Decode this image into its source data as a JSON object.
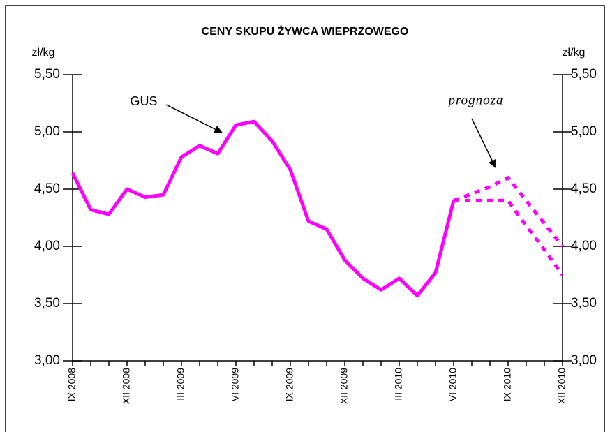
{
  "chart_data": {
    "type": "line",
    "title": "CENY SKUPU ŻYWCA WIEPRZOWEGO",
    "y_label": "zł/kg",
    "y2_label": "zł/kg",
    "annotations": [
      "GUS",
      "prognoza"
    ],
    "categories": [
      "IX 2008",
      null,
      null,
      "XII 2008",
      null,
      null,
      "III 2009",
      null,
      null,
      "VI 2009",
      null,
      null,
      "IX 2009",
      null,
      null,
      "XII 2009",
      null,
      null,
      "III 2010",
      null,
      null,
      "VI 2010",
      null,
      null,
      "IX 2010",
      null,
      null,
      "XII 2010"
    ],
    "series": [
      {
        "color": "#ff00ff",
        "style": "solid",
        "values": [
          4.64,
          4.32,
          4.28,
          4.5,
          4.43,
          4.45,
          4.78,
          4.88,
          4.81,
          5.06,
          5.09,
          4.92,
          4.67,
          4.22,
          4.15,
          3.88,
          3.72,
          3.62,
          3.72,
          3.57,
          3.77,
          4.4,
          null,
          null,
          null,
          null,
          null,
          null
        ]
      },
      {
        "color": "#ff00ff",
        "style": "dashed",
        "values": [
          null,
          null,
          null,
          null,
          null,
          null,
          null,
          null,
          null,
          null,
          null,
          null,
          null,
          null,
          null,
          null,
          null,
          null,
          null,
          null,
          null,
          4.4,
          4.46,
          4.52,
          4.6,
          4.4,
          4.2,
          4.0
        ]
      },
      {
        "color": "#ff00ff",
        "style": "dashed",
        "values": [
          null,
          null,
          null,
          null,
          null,
          null,
          null,
          null,
          null,
          null,
          null,
          null,
          null,
          null,
          null,
          null,
          null,
          null,
          null,
          null,
          null,
          4.4,
          4.4,
          4.4,
          4.4,
          4.18,
          3.97,
          3.75
        ]
      }
    ],
    "ylim": [
      3.0,
      5.5
    ],
    "yticks": [
      {
        "value": 3.0,
        "label": "3,00"
      },
      {
        "value": 3.5,
        "label": "3,50"
      },
      {
        "value": 4.0,
        "label": "4,00"
      },
      {
        "value": 4.5,
        "label": "4,50"
      },
      {
        "value": 5.0,
        "label": "5,00"
      },
      {
        "value": 5.5,
        "label": "5,50"
      }
    ],
    "y2lim": [
      3.0,
      5.5
    ],
    "y2ticks": [
      {
        "value": 3.0,
        "label": "3,00"
      },
      {
        "value": 3.5,
        "label": "3,50"
      },
      {
        "value": 4.0,
        "label": "4,00"
      },
      {
        "value": 4.5,
        "label": "4,50"
      },
      {
        "value": 5.0,
        "label": "5,00"
      },
      {
        "value": 5.5,
        "label": "5,50"
      }
    ]
  }
}
